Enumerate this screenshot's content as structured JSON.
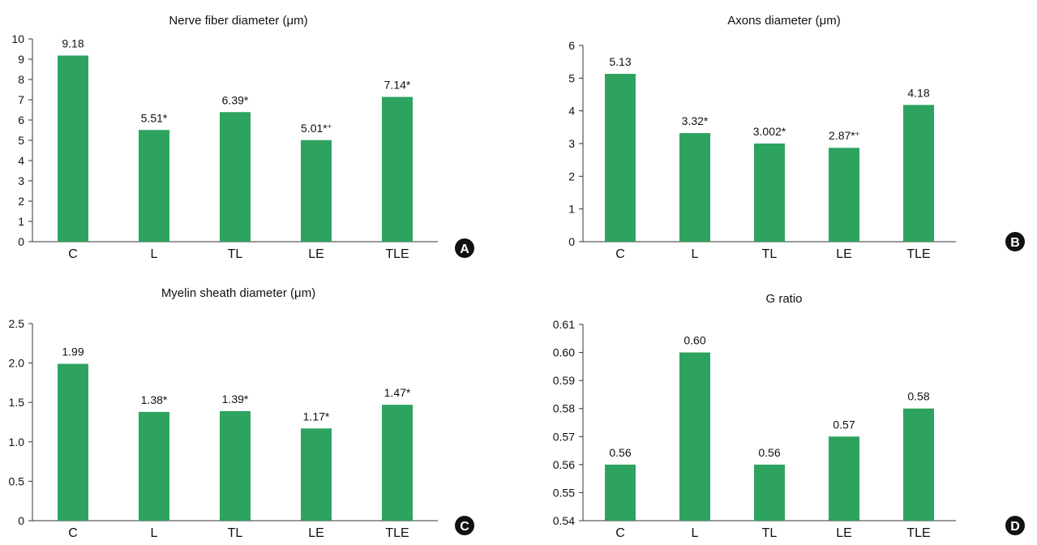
{
  "figure": {
    "bar_color": "#2ea35f",
    "axis_color": "#333333",
    "badge_color": "#111111"
  },
  "chart_data": [
    {
      "id": "A",
      "panel_label": "A",
      "type": "bar",
      "title": "Nerve fiber diameter (μm)",
      "categories": [
        "C",
        "L",
        "TL",
        "LE",
        "TLE"
      ],
      "values": [
        9.18,
        5.51,
        6.39,
        5.01,
        7.14
      ],
      "value_labels": [
        "9.18",
        "5.51*",
        "6.39*",
        "5.01*",
        "7.14*"
      ],
      "value_label_marks": [
        "",
        "",
        "",
        "+",
        ""
      ],
      "ylim": [
        0,
        10
      ],
      "yticks": [
        0,
        1,
        2,
        3,
        4,
        5,
        6,
        7,
        8,
        9,
        10
      ],
      "ytick_labels": [
        "0",
        "1",
        "2",
        "3",
        "4",
        "5",
        "6",
        "7",
        "8",
        "9",
        "10"
      ],
      "xlabel": "",
      "ylabel": "",
      "grid": false,
      "legend": "none"
    },
    {
      "id": "B",
      "panel_label": "B",
      "type": "bar",
      "title": "Axons diameter (μm)",
      "categories": [
        "C",
        "L",
        "TL",
        "LE",
        "TLE"
      ],
      "values": [
        5.13,
        3.32,
        3.002,
        2.87,
        4.18
      ],
      "value_labels": [
        "5.13",
        "3.32*",
        "3.002*",
        "2.87*",
        "4.18"
      ],
      "value_label_marks": [
        "",
        "",
        "",
        "+",
        ""
      ],
      "ylim": [
        0,
        6
      ],
      "yticks": [
        0,
        1,
        2,
        3,
        4,
        5,
        6
      ],
      "ytick_labels": [
        "0",
        "1",
        "2",
        "3",
        "4",
        "5",
        "6"
      ],
      "xlabel": "",
      "ylabel": "",
      "grid": false,
      "legend": "none"
    },
    {
      "id": "C",
      "panel_label": "C",
      "type": "bar",
      "title": "Myelin sheath diameter (μm)",
      "categories": [
        "C",
        "L",
        "TL",
        "LE",
        "TLE"
      ],
      "values": [
        1.99,
        1.38,
        1.39,
        1.17,
        1.47
      ],
      "value_labels": [
        "1.99",
        "1.38*",
        "1.39*",
        "1.17*",
        "1.47*"
      ],
      "value_label_marks": [
        "",
        "",
        "",
        "",
        ""
      ],
      "ylim": [
        0,
        2.5
      ],
      "yticks": [
        0,
        0.5,
        1.0,
        1.5,
        2.0,
        2.5
      ],
      "ytick_labels": [
        "0",
        "0.5",
        "1.0",
        "1.5",
        "2.0",
        "2.5"
      ],
      "xlabel": "",
      "ylabel": "",
      "grid": false,
      "legend": "none"
    },
    {
      "id": "D",
      "panel_label": "D",
      "type": "bar",
      "title": "G ratio",
      "categories": [
        "C",
        "L",
        "TL",
        "LE",
        "TLE"
      ],
      "values": [
        0.56,
        0.6,
        0.56,
        0.57,
        0.58
      ],
      "value_labels": [
        "0.56",
        "0.60",
        "0.56",
        "0.57",
        "0.58"
      ],
      "value_label_marks": [
        "",
        "",
        "",
        "",
        ""
      ],
      "ylim": [
        0.54,
        0.61
      ],
      "yticks": [
        0.54,
        0.55,
        0.56,
        0.57,
        0.58,
        0.59,
        0.6,
        0.61
      ],
      "ytick_labels": [
        "0.54",
        "0.55",
        "0.56",
        "0.57",
        "0.58",
        "0.59",
        "0.60",
        "0.61"
      ],
      "xlabel": "",
      "ylabel": "",
      "grid": false,
      "legend": "none"
    }
  ]
}
